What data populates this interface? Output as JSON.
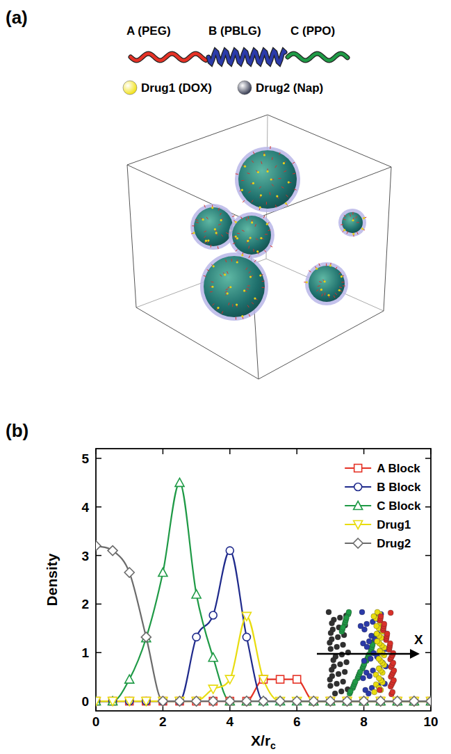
{
  "panel_a": {
    "label": "(a)",
    "blocks": [
      {
        "label": "A (PEG)",
        "color": "#e53226"
      },
      {
        "label": "B (PBLG)",
        "color": "#2b3aa8"
      },
      {
        "label": "C (PPO)",
        "color": "#1f9a46"
      }
    ],
    "drugs": [
      {
        "label": "Drug1 (DOX)",
        "color": "#f2e21c"
      },
      {
        "label": "Drug2 (Nap)",
        "color": "#3a3f55"
      }
    ]
  },
  "chart_data": {
    "type": "line",
    "panel_label": "(b)",
    "xlabel": "X/rc",
    "ylabel": "Density",
    "inset_label": "X",
    "x": [
      0,
      0.5,
      1,
      1.5,
      2,
      2.5,
      3,
      3.5,
      4,
      4.5,
      5,
      5.5,
      6,
      6.5,
      7,
      7.5,
      8,
      8.5,
      9,
      9.5,
      10
    ],
    "series": [
      {
        "name": "A Block",
        "color": "#e53226",
        "marker": "square",
        "values": [
          0,
          0,
          0,
          0,
          0,
          0,
          0,
          0,
          0,
          0,
          0.45,
          0.45,
          0.45,
          0,
          0,
          0,
          0,
          0,
          0,
          0,
          0
        ]
      },
      {
        "name": "B Block",
        "color": "#1f2a8c",
        "marker": "circle",
        "values": [
          0,
          0,
          0,
          0,
          0,
          0,
          1.32,
          1.77,
          3.1,
          1.32,
          0,
          0,
          0,
          0,
          0,
          0,
          0,
          0,
          0,
          0,
          0
        ]
      },
      {
        "name": "C Block",
        "color": "#1f9a46",
        "marker": "triangle",
        "values": [
          0,
          0,
          0.45,
          1.3,
          2.65,
          4.5,
          2.2,
          0.9,
          0,
          0,
          0,
          0,
          0,
          0,
          0,
          0,
          0,
          0,
          0,
          0,
          0
        ]
      },
      {
        "name": "Drug1",
        "color": "#e8dc10",
        "marker": "triangle-down",
        "values": [
          0,
          0,
          0,
          0,
          0,
          0,
          0,
          0.25,
          0.45,
          1.75,
          0.45,
          0,
          0,
          0,
          0,
          0,
          0,
          0,
          0,
          0,
          0
        ]
      },
      {
        "name": "Drug2",
        "color": "#6b6b6b",
        "marker": "diamond",
        "values": [
          3.2,
          3.1,
          2.65,
          1.32,
          0,
          0,
          0,
          0,
          0,
          0,
          0,
          0,
          0,
          0,
          0,
          0,
          0,
          0,
          0,
          0,
          0
        ]
      }
    ],
    "xlim": [
      0,
      10
    ],
    "ylim": [
      -0.2,
      5.2
    ],
    "xticks": [
      0,
      2,
      4,
      6,
      8,
      10
    ],
    "yticks": [
      0,
      1,
      2,
      3,
      4,
      5
    ],
    "legend": "upper right"
  }
}
